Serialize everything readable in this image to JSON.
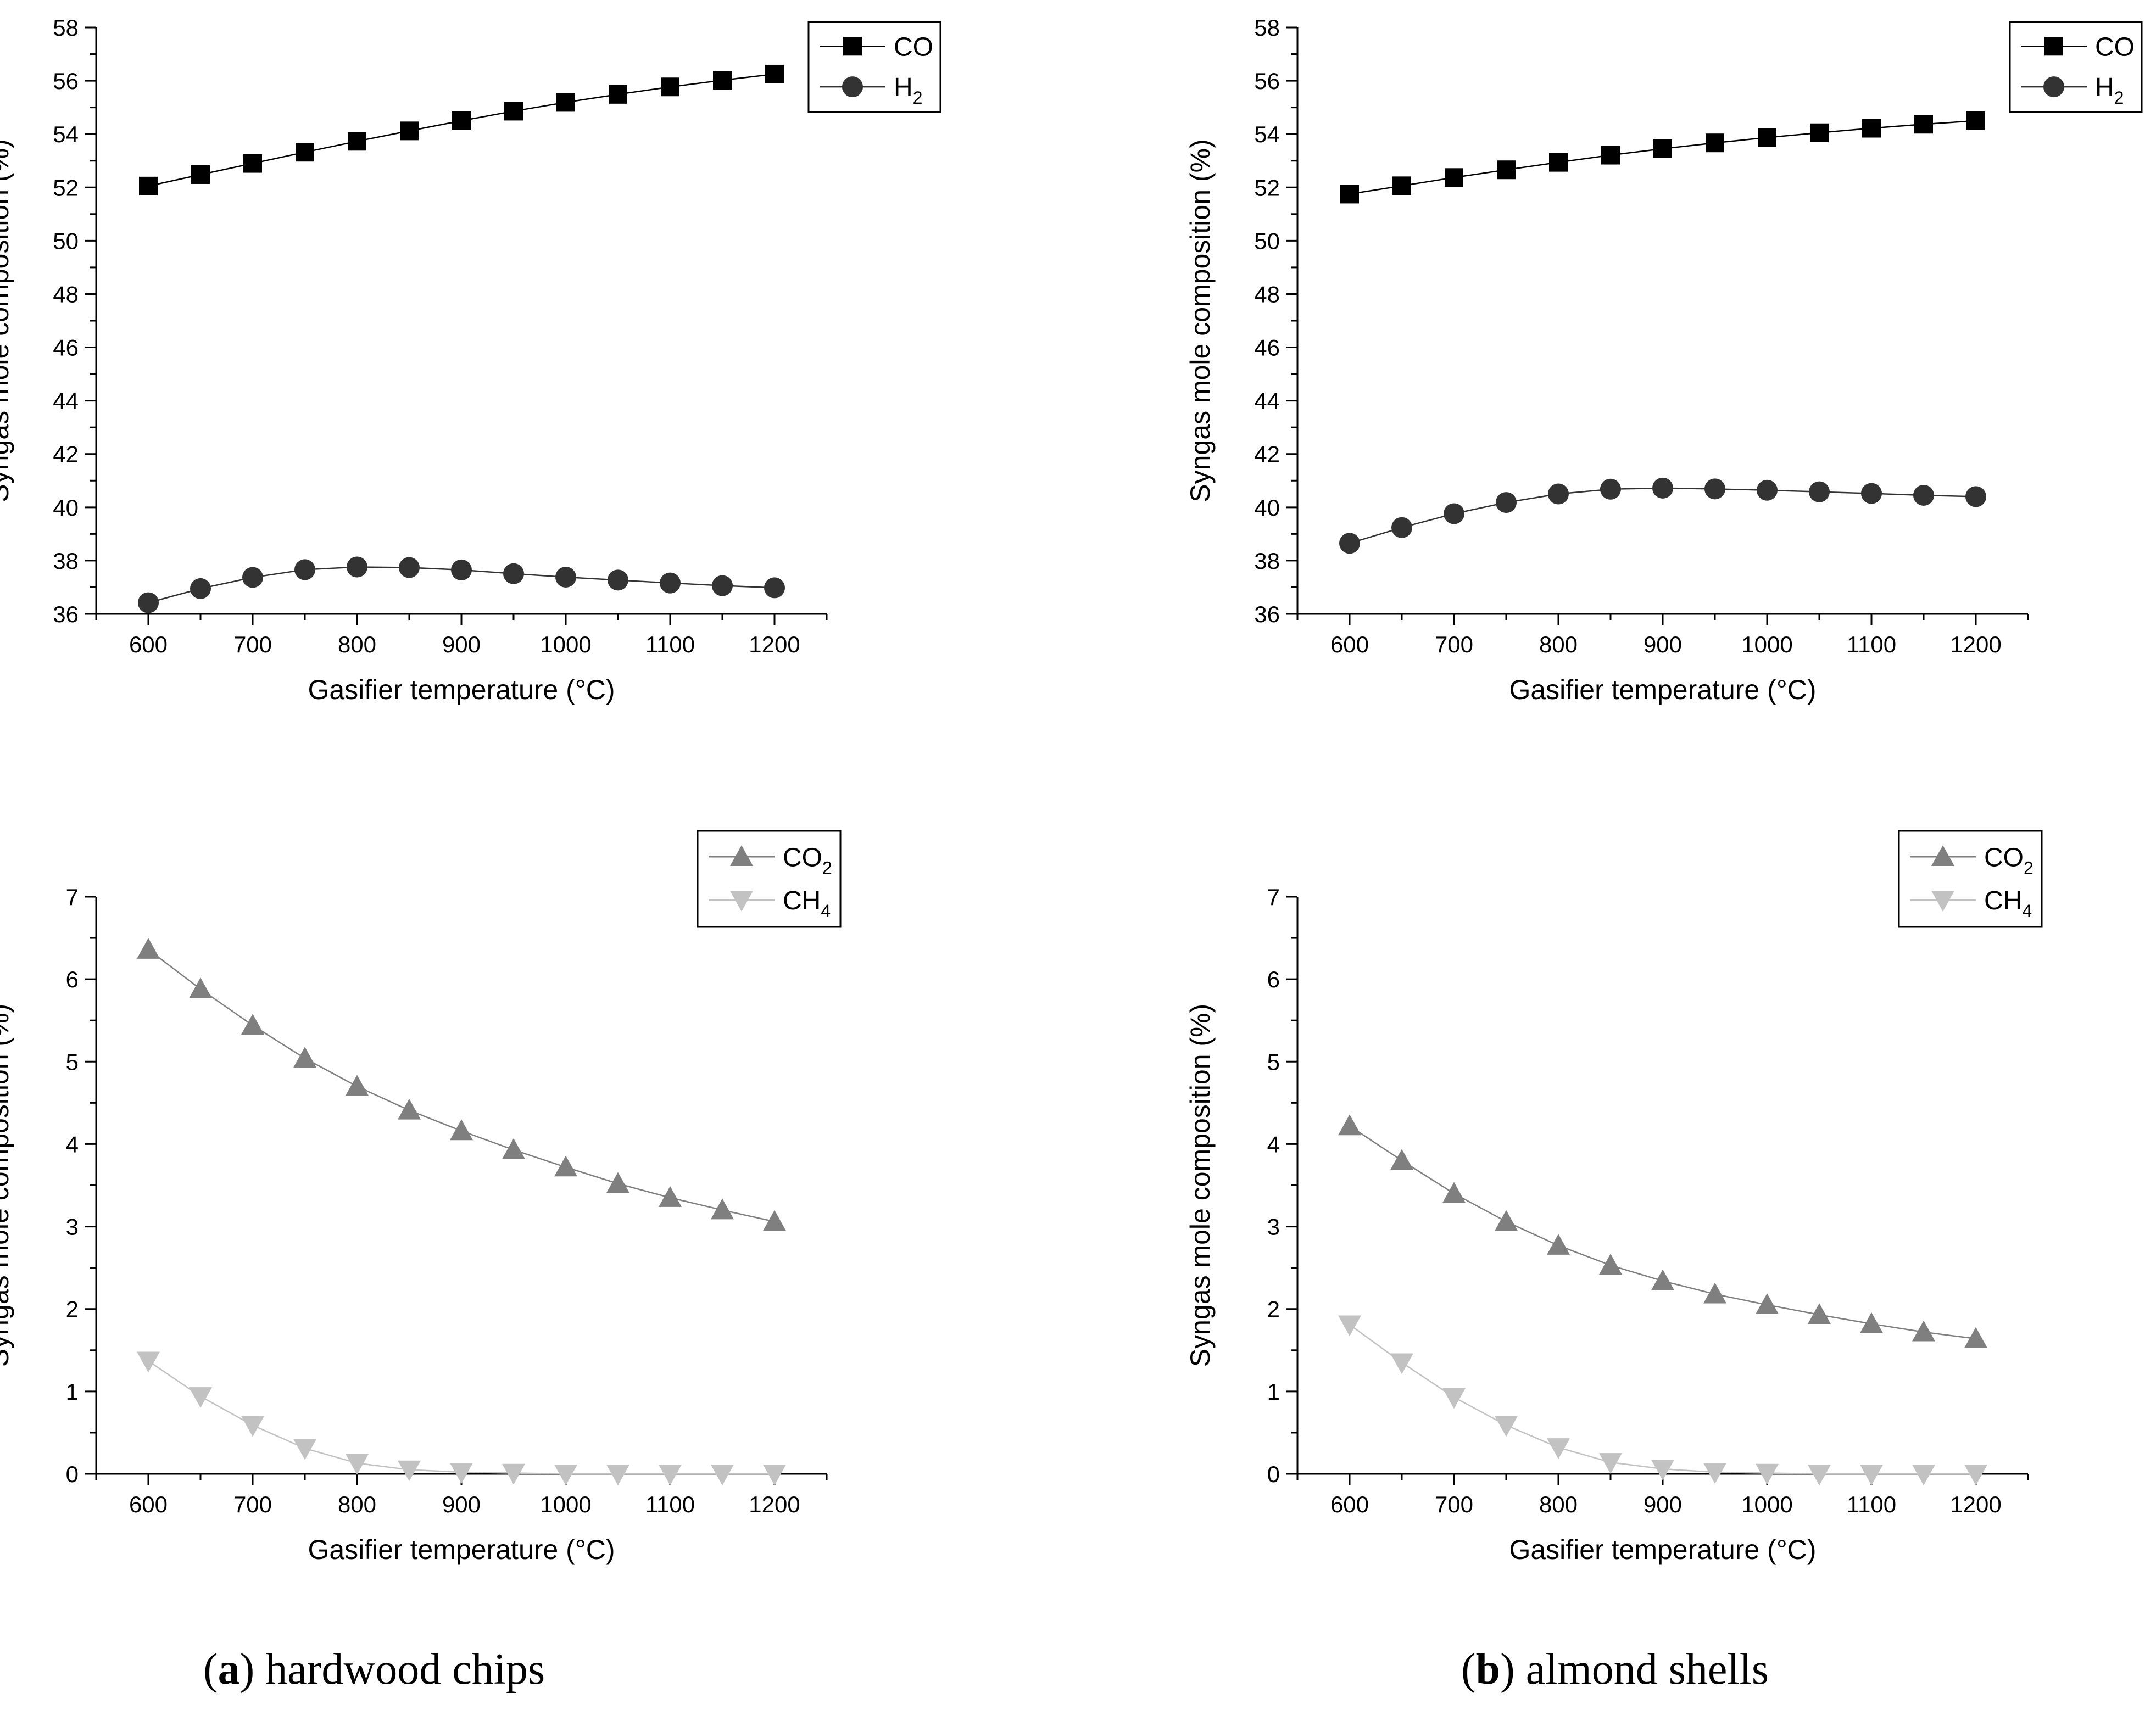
{
  "chart_data": [
    {
      "id": "a-top",
      "type": "line",
      "xlabel": "Gasifier temperature (°C)",
      "ylabel": "Syngas mole composition (%)",
      "xlim": [
        550,
        1250
      ],
      "ylim": [
        36,
        58
      ],
      "x_ticks": [
        600,
        700,
        800,
        900,
        1000,
        1100,
        1200
      ],
      "y_ticks": [
        36,
        38,
        40,
        42,
        44,
        46,
        48,
        50,
        52,
        54,
        56,
        58
      ],
      "legend_position": "top-right",
      "x": [
        600,
        650,
        700,
        750,
        800,
        850,
        900,
        950,
        1000,
        1050,
        1100,
        1150,
        1200
      ],
      "series": [
        {
          "name": "CO",
          "label": "CO",
          "sub": "",
          "marker": "square",
          "color": "#000000",
          "values": [
            52.05,
            52.48,
            52.9,
            53.32,
            53.73,
            54.12,
            54.5,
            54.86,
            55.19,
            55.49,
            55.77,
            56.02,
            56.25
          ]
        },
        {
          "name": "H2",
          "label": "H",
          "sub": "2",
          "marker": "circle",
          "color": "#333333",
          "values": [
            36.42,
            36.95,
            37.37,
            37.66,
            37.76,
            37.74,
            37.65,
            37.51,
            37.38,
            37.27,
            37.16,
            37.06,
            36.98
          ]
        }
      ]
    },
    {
      "id": "b-top",
      "type": "line",
      "xlabel": "Gasifier temperature (°C)",
      "ylabel": "Syngas mole composition (%)",
      "xlim": [
        550,
        1250
      ],
      "ylim": [
        36,
        58
      ],
      "x_ticks": [
        600,
        700,
        800,
        900,
        1000,
        1100,
        1200
      ],
      "y_ticks": [
        36,
        38,
        40,
        42,
        44,
        46,
        48,
        50,
        52,
        54,
        56,
        58
      ],
      "legend_position": "top-right",
      "x": [
        600,
        650,
        700,
        750,
        800,
        850,
        900,
        950,
        1000,
        1050,
        1100,
        1150,
        1200
      ],
      "series": [
        {
          "name": "CO",
          "label": "CO",
          "sub": "",
          "marker": "square",
          "color": "#000000",
          "values": [
            51.75,
            52.06,
            52.37,
            52.66,
            52.94,
            53.21,
            53.45,
            53.67,
            53.87,
            54.05,
            54.22,
            54.37,
            54.5
          ]
        },
        {
          "name": "H2",
          "label": "H",
          "sub": "2",
          "marker": "circle",
          "color": "#333333",
          "values": [
            38.65,
            39.24,
            39.76,
            40.18,
            40.5,
            40.68,
            40.72,
            40.69,
            40.64,
            40.58,
            40.52,
            40.45,
            40.4
          ]
        }
      ]
    },
    {
      "id": "a-bottom",
      "type": "line",
      "xlabel": "Gasifier temperature (°C)",
      "ylabel": "Syngas mole composition (%)",
      "xlim": [
        550,
        1250
      ],
      "ylim": [
        0,
        7
      ],
      "x_ticks": [
        600,
        700,
        800,
        900,
        1000,
        1100,
        1200
      ],
      "y_ticks": [
        0,
        1,
        2,
        3,
        4,
        5,
        6,
        7
      ],
      "legend_position": "top-right",
      "x": [
        600,
        650,
        700,
        750,
        800,
        850,
        900,
        950,
        1000,
        1050,
        1100,
        1150,
        1200
      ],
      "series": [
        {
          "name": "CO2",
          "label": "CO",
          "sub": "2",
          "marker": "triangle-up",
          "color": "#7f7f7f",
          "values": [
            6.36,
            5.88,
            5.44,
            5.04,
            4.7,
            4.41,
            4.16,
            3.93,
            3.72,
            3.52,
            3.35,
            3.2,
            3.06
          ]
        },
        {
          "name": "CH4",
          "label": "CH",
          "sub": "4",
          "marker": "triangle-down",
          "color": "#c2c2c2",
          "values": [
            1.37,
            0.94,
            0.59,
            0.31,
            0.13,
            0.05,
            0.02,
            0.01,
            0.0,
            0.0,
            0.0,
            0.0,
            0.0
          ]
        }
      ]
    },
    {
      "id": "b-bottom",
      "type": "line",
      "xlabel": "Gasifier temperature (°C)",
      "ylabel": "Syngas mole composition (%)",
      "xlim": [
        550,
        1250
      ],
      "ylim": [
        0,
        7
      ],
      "x_ticks": [
        600,
        700,
        800,
        900,
        1000,
        1100,
        1200
      ],
      "y_ticks": [
        0,
        1,
        2,
        3,
        4,
        5,
        6,
        7
      ],
      "legend_position": "top-right",
      "x": [
        600,
        650,
        700,
        750,
        800,
        850,
        900,
        950,
        1000,
        1050,
        1100,
        1150,
        1200
      ],
      "series": [
        {
          "name": "CO2",
          "label": "CO",
          "sub": "2",
          "marker": "triangle-up",
          "color": "#7f7f7f",
          "values": [
            4.22,
            3.8,
            3.4,
            3.06,
            2.77,
            2.53,
            2.34,
            2.18,
            2.05,
            1.93,
            1.82,
            1.72,
            1.64
          ]
        },
        {
          "name": "CH4",
          "label": "CH",
          "sub": "4",
          "marker": "triangle-down",
          "color": "#c2c2c2",
          "values": [
            1.81,
            1.35,
            0.93,
            0.59,
            0.32,
            0.14,
            0.06,
            0.02,
            0.01,
            0.0,
            0.0,
            0.0,
            0.0
          ]
        }
      ]
    }
  ],
  "captions": {
    "a": {
      "letter": "a",
      "text": " hardwood chips"
    },
    "b": {
      "letter": "b",
      "text": " almond shells"
    }
  }
}
